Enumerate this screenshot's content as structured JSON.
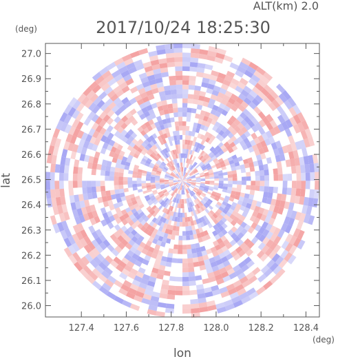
{
  "chart_data": {
    "type": "heatmap",
    "title": "2017/10/24 18:25:30",
    "subtitle": "ALT(km) 2.0",
    "xlabel": "lon",
    "ylabel": "lat",
    "x_unit": "(deg)",
    "y_unit": "(deg)",
    "xlim": [
      127.24,
      128.46
    ],
    "ylim": [
      25.955,
      27.04
    ],
    "x_ticks": [
      127.4,
      127.6,
      127.8,
      128.0,
      128.2,
      128.4
    ],
    "x_tick_labels": [
      "127.4",
      "127.6",
      "127.8",
      "128.0",
      "128.2",
      "128.4"
    ],
    "y_ticks": [
      26.0,
      26.1,
      26.2,
      26.3,
      26.4,
      26.5,
      26.6,
      26.7,
      26.8,
      26.9,
      27.0
    ],
    "y_tick_labels": [
      "26.0",
      "26.1",
      "26.2",
      "26.3",
      "26.4",
      "26.5",
      "26.6",
      "26.7",
      "26.8",
      "26.9",
      "27.0"
    ],
    "radar_center": {
      "lon": 127.85,
      "lat": 26.495
    },
    "radar_radius_deg": {
      "lon": 0.61,
      "lat": 0.545
    },
    "colors": {
      "positive": "#f4a3a3",
      "negative": "#a8a8f4",
      "neutral": "#ffffff",
      "axis": "#555555"
    }
  }
}
